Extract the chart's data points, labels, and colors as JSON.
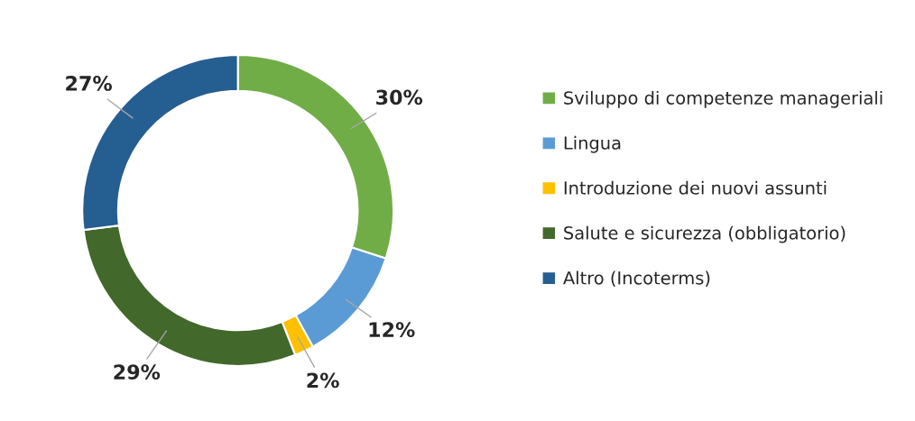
{
  "chart_data": {
    "type": "donut",
    "categories": [
      "Sviluppo di competenze manageriali",
      "Lingua",
      "Introduzione dei nuovi assunti",
      "Salute e sicurezza (obbligatorio)",
      "Altro (Incoterms)"
    ],
    "values": [
      30,
      12,
      2,
      29,
      27
    ],
    "colors": [
      "#70ad47",
      "#5b9bd5",
      "#ffc000",
      "#43682b",
      "#255e91"
    ],
    "value_labels": [
      "30%",
      "12%",
      "2%",
      "29%",
      "27%"
    ],
    "legend": "right"
  }
}
